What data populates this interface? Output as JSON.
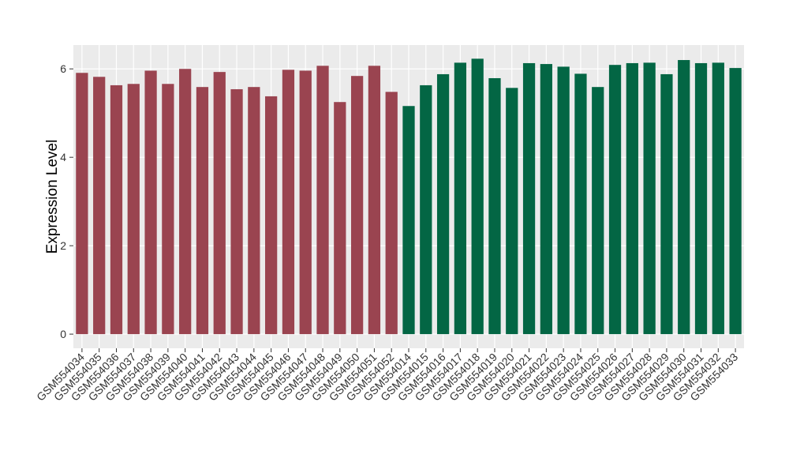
{
  "chart_data": {
    "type": "bar",
    "y_label": "Expression Level",
    "categories": [
      "GSM554034",
      "GSM554035",
      "GSM554036",
      "GSM554037",
      "GSM554038",
      "GSM554039",
      "GSM554040",
      "GSM554041",
      "GSM554042",
      "GSM554043",
      "GSM554044",
      "GSM554045",
      "GSM554046",
      "GSM554047",
      "GSM554048",
      "GSM554049",
      "GSM554050",
      "GSM554051",
      "GSM554052",
      "GSM554014",
      "GSM554015",
      "GSM554016",
      "GSM554017",
      "GSM554018",
      "GSM554019",
      "GSM554020",
      "GSM554021",
      "GSM554022",
      "GSM554023",
      "GSM554024",
      "GSM554025",
      "GSM554026",
      "GSM554027",
      "GSM554028",
      "GSM554029",
      "GSM554030",
      "GSM554031",
      "GSM554032",
      "GSM554033"
    ],
    "values": [
      5.91,
      5.82,
      5.63,
      5.66,
      5.96,
      5.66,
      6.0,
      5.59,
      5.93,
      5.54,
      5.59,
      5.38,
      5.98,
      5.96,
      6.07,
      5.25,
      5.84,
      6.07,
      5.48,
      5.16,
      5.63,
      5.88,
      6.14,
      6.23,
      5.79,
      5.57,
      6.13,
      6.11,
      6.05,
      5.89,
      5.59,
      6.09,
      6.13,
      6.14,
      5.88,
      6.2,
      6.13,
      6.14,
      6.02
    ],
    "colors": [
      "#9a4450",
      "#9a4450",
      "#9a4450",
      "#9a4450",
      "#9a4450",
      "#9a4450",
      "#9a4450",
      "#9a4450",
      "#9a4450",
      "#9a4450",
      "#9a4450",
      "#9a4450",
      "#9a4450",
      "#9a4450",
      "#9a4450",
      "#9a4450",
      "#9a4450",
      "#9a4450",
      "#9a4450",
      "#036644",
      "#036644",
      "#036644",
      "#036644",
      "#036644",
      "#036644",
      "#036644",
      "#036644",
      "#036644",
      "#036644",
      "#036644",
      "#036644",
      "#036644",
      "#036644",
      "#036644",
      "#036644",
      "#036644",
      "#036644",
      "#036644",
      "#036644"
    ],
    "ylim": [
      -0.32,
      6.54
    ],
    "yticks": [
      0,
      2,
      4,
      6
    ],
    "grid": true
  }
}
